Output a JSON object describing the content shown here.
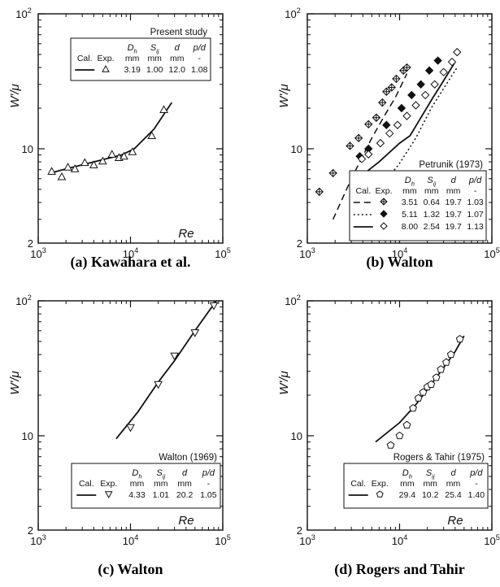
{
  "chart_data": [
    {
      "type": "scatter",
      "caption": "(a) Kawahara et al.",
      "xlabel": "Re",
      "ylabel": "W'/μ",
      "xscale": "log",
      "yscale": "log",
      "xlim": [
        1000,
        100000
      ],
      "ylim": [
        2,
        100
      ],
      "xticks": [
        "10^3",
        "10^4",
        "10^5"
      ],
      "yticks": [
        "2",
        "10",
        "10^2"
      ],
      "legend": {
        "title": "Present study",
        "placement": "top",
        "headers": [
          "Cal.",
          "Exp.",
          "D_h mm",
          "S_ij mm",
          "d mm",
          "p/d -"
        ],
        "rows": [
          {
            "line": "solid",
            "marker": "triangle-up",
            "values": [
              "3.19",
              "1.00",
              "12.0",
              "1.08"
            ]
          }
        ]
      },
      "series": [
        {
          "name": "Exp.",
          "marker": "triangle-up",
          "points": [
            [
              1400,
              6.8
            ],
            [
              1800,
              6.2
            ],
            [
              2100,
              7.3
            ],
            [
              2500,
              7.1
            ],
            [
              3200,
              7.9
            ],
            [
              4000,
              7.6
            ],
            [
              5000,
              8.1
            ],
            [
              6300,
              9.1
            ],
            [
              7500,
              8.6
            ],
            [
              8500,
              8.8
            ],
            [
              10500,
              9.5
            ],
            [
              17000,
              12.5
            ],
            [
              23000,
              19.5
            ]
          ]
        },
        {
          "name": "Cal.",
          "line": "solid",
          "points": [
            [
              1350,
              6.6
            ],
            [
              2000,
              7.1
            ],
            [
              3000,
              7.6
            ],
            [
              5000,
              8.3
            ],
            [
              8000,
              9.0
            ],
            [
              11000,
              10.0
            ],
            [
              18000,
              14.0
            ],
            [
              28000,
              22.0
            ]
          ]
        }
      ]
    },
    {
      "type": "scatter",
      "caption": "(b) Walton",
      "xlabel": "Re",
      "ylabel": "W'/μ",
      "xscale": "log",
      "yscale": "log",
      "xlim": [
        1000,
        100000
      ],
      "ylim": [
        2,
        100
      ],
      "xticks": [
        "10^3",
        "10^4",
        "10^5"
      ],
      "yticks": [
        "2",
        "10",
        "10^2"
      ],
      "legend": {
        "title": "Petrunik (1973)",
        "placement": "bottom-right",
        "headers": [
          "Cal.",
          "Exp.",
          "D_h mm",
          "S_ij mm",
          "d mm",
          "p/d -"
        ],
        "rows": [
          {
            "line": "dashed",
            "marker": "diamond-cross",
            "values": [
              "3.51",
              "0.64",
              "19.7",
              "1.03"
            ]
          },
          {
            "line": "dotted",
            "marker": "diamond-filled",
            "values": [
              "5.11",
              "1.32",
              "19.7",
              "1.07"
            ]
          },
          {
            "line": "solid",
            "marker": "diamond-open",
            "values": [
              "8.00",
              "2.54",
              "19.7",
              "1.13"
            ]
          }
        ]
      },
      "series": [
        {
          "name": "3.51",
          "marker": "diamond-cross",
          "points": [
            [
              1350,
              4.8
            ],
            [
              1900,
              6.6
            ],
            [
              2900,
              10.5
            ],
            [
              3600,
              12.0
            ],
            [
              4600,
              15.2
            ],
            [
              5600,
              17.0
            ],
            [
              6500,
              22.0
            ],
            [
              7200,
              26.5
            ],
            [
              8200,
              28.5
            ],
            [
              9200,
              33.0
            ],
            [
              11000,
              38.0
            ],
            [
              12000,
              40.0
            ]
          ]
        },
        {
          "name": "5.11",
          "marker": "diamond-filled",
          "points": [
            [
              3700,
              8.8
            ],
            [
              4600,
              10.0
            ],
            [
              7200,
              15.0
            ],
            [
              10500,
              20.0
            ],
            [
              13500,
              25.0
            ],
            [
              17000,
              30.0
            ],
            [
              21000,
              38.0
            ],
            [
              26000,
              45.0
            ]
          ]
        },
        {
          "name": "8.00",
          "marker": "diamond-open",
          "points": [
            [
              3900,
              8.4
            ],
            [
              4600,
              9.1
            ],
            [
              6200,
              11.0
            ],
            [
              7800,
              13.0
            ],
            [
              9500,
              15.0
            ],
            [
              12000,
              17.5
            ],
            [
              15000,
              21.0
            ],
            [
              19000,
              25.0
            ],
            [
              24000,
              30.0
            ],
            [
              30000,
              37.0
            ],
            [
              37000,
              44.0
            ],
            [
              42000,
              52.0
            ]
          ]
        },
        {
          "name": "Cal. 3.51",
          "line": "dashed",
          "points": [
            [
              1900,
              3.0
            ],
            [
              3000,
              6.0
            ],
            [
              5000,
              12.0
            ],
            [
              7000,
              18.0
            ],
            [
              9000,
              24.0
            ],
            [
              12000,
              36.0
            ]
          ]
        },
        {
          "name": "Cal. 5.11",
          "line": "dotted",
          "points": [
            [
              6000,
              5.0
            ],
            [
              10000,
              7.8
            ],
            [
              15000,
              12.0
            ],
            [
              22000,
              20.0
            ],
            [
              32000,
              30.0
            ],
            [
              42000,
              40.0
            ]
          ]
        },
        {
          "name": "Cal. 8.00",
          "line": "solid",
          "points": [
            [
              3500,
              6.0
            ],
            [
              6000,
              8.0
            ],
            [
              10000,
              11.0
            ],
            [
              13000,
              12.5
            ],
            [
              17000,
              17.0
            ],
            [
              23000,
              24.0
            ],
            [
              30000,
              32.0
            ],
            [
              40000,
              44.0
            ]
          ]
        }
      ]
    },
    {
      "type": "scatter",
      "caption": "(c) Walton",
      "xlabel": "Re",
      "ylabel": "W'/μ",
      "xscale": "log",
      "yscale": "log",
      "xlim": [
        1000,
        100000
      ],
      "ylim": [
        2,
        100
      ],
      "xticks": [
        "10^3",
        "10^4",
        "10^5"
      ],
      "yticks": [
        "2",
        "10",
        "10^2"
      ],
      "legend": {
        "title": "Walton (1969)",
        "placement": "bottom-right",
        "headers": [
          "Cal.",
          "Exp.",
          "D_h mm",
          "S_ij mm",
          "d mm",
          "p/d -"
        ],
        "rows": [
          {
            "line": "solid",
            "marker": "triangle-down",
            "values": [
              "4.33",
              "1.01",
              "20.2",
              "1.05"
            ]
          }
        ]
      },
      "series": [
        {
          "name": "Exp.",
          "marker": "triangle-down",
          "points": [
            [
              10000,
              11.5
            ],
            [
              20000,
              24.0
            ],
            [
              30000,
              39.0
            ],
            [
              50000,
              58.0
            ],
            [
              80000,
              92.0
            ]
          ]
        },
        {
          "name": "Cal.",
          "line": "solid",
          "points": [
            [
              7000,
              9.5
            ],
            [
              12000,
              15.0
            ],
            [
              20000,
              25.0
            ],
            [
              30000,
              36.0
            ],
            [
              50000,
              60.0
            ],
            [
              85000,
              100.0
            ]
          ]
        }
      ]
    },
    {
      "type": "scatter",
      "caption": "(d) Rogers and Tahir",
      "xlabel": "Re",
      "ylabel": "W'/μ",
      "xscale": "log",
      "yscale": "log",
      "xlim": [
        1000,
        100000
      ],
      "ylim": [
        2,
        100
      ],
      "xticks": [
        "10^3",
        "10^4",
        "10^5"
      ],
      "yticks": [
        "2",
        "10",
        "10^2"
      ],
      "legend": {
        "title": "Rogers & Tahir (1975)",
        "placement": "bottom-right",
        "headers": [
          "Cal.",
          "Exp.",
          "D_h mm",
          "S_ij mm",
          "d mm",
          "p/d -"
        ],
        "rows": [
          {
            "line": "solid",
            "marker": "pentagon",
            "values": [
              "29.4",
              "10.2",
              "25.4",
              "1.40"
            ]
          }
        ]
      },
      "series": [
        {
          "name": "Exp.",
          "marker": "pentagon",
          "points": [
            [
              8000,
              8.5
            ],
            [
              10000,
              10.0
            ],
            [
              12000,
              12.0
            ],
            [
              14000,
              16.0
            ],
            [
              16000,
              19.0
            ],
            [
              18000,
              21.0
            ],
            [
              20000,
              23.0
            ],
            [
              22000,
              24.0
            ],
            [
              25000,
              27.0
            ],
            [
              28000,
              31.0
            ],
            [
              32000,
              35.0
            ],
            [
              36000,
              40.0
            ],
            [
              45000,
              52.0
            ]
          ]
        },
        {
          "name": "Cal.",
          "line": "solid",
          "points": [
            [
              5500,
              9.0
            ],
            [
              10000,
              12.5
            ],
            [
              15000,
              17.0
            ],
            [
              20000,
              22.0
            ],
            [
              30000,
              32.0
            ],
            [
              40000,
              42.0
            ],
            [
              50000,
              55.0
            ]
          ]
        }
      ]
    }
  ]
}
